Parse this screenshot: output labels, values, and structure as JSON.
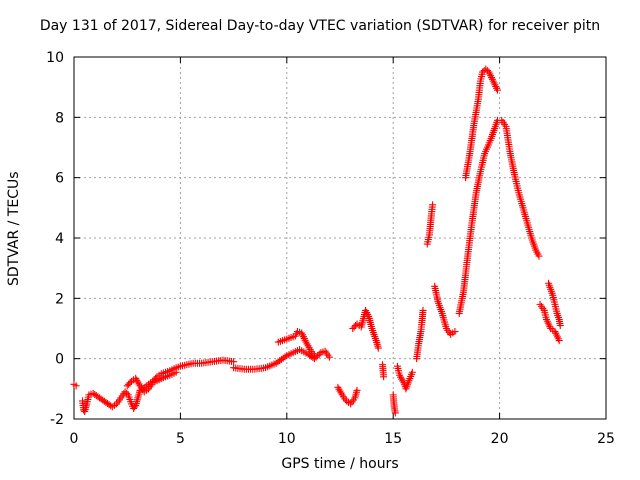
{
  "chart_data": {
    "type": "scatter",
    "title": "Day 131 of 2017, Sidereal Day-to-day VTEC variation (SDTVAR) for receiver pitn",
    "xlabel": "GPS time / hours",
    "ylabel": "SDTVAR / TECUs",
    "xlim": [
      0,
      25
    ],
    "ylim": [
      -2,
      10
    ],
    "xticks": [
      "0",
      "5",
      "10",
      "15",
      "20",
      "25"
    ],
    "yticks": [
      "-2",
      "0",
      "2",
      "4",
      "6",
      "8",
      "10"
    ],
    "grid": true,
    "marker": "+",
    "color": "#ff0000",
    "series": [
      {
        "segments": [
          [
            [
              0.0,
              -0.85
            ],
            [
              0.1,
              -0.9
            ]
          ],
          [
            [
              0.4,
              -1.4
            ],
            [
              0.45,
              -1.7
            ],
            [
              0.5,
              -1.75
            ],
            [
              0.6,
              -1.5
            ],
            [
              0.7,
              -1.2
            ],
            [
              0.9,
              -1.15
            ],
            [
              1.2,
              -1.3
            ],
            [
              1.5,
              -1.45
            ],
            [
              1.8,
              -1.6
            ],
            [
              2.0,
              -1.5
            ],
            [
              2.2,
              -1.3
            ],
            [
              2.4,
              -1.1
            ],
            [
              2.55,
              -1.2
            ],
            [
              2.7,
              -1.5
            ],
            [
              2.8,
              -1.65
            ],
            [
              2.9,
              -1.55
            ],
            [
              3.0,
              -1.3
            ],
            [
              3.1,
              -1.05
            ],
            [
              3.3,
              -0.95
            ],
            [
              3.5,
              -0.85
            ],
            [
              3.7,
              -0.75
            ],
            [
              3.9,
              -0.6
            ],
            [
              4.1,
              -0.5
            ],
            [
              4.3,
              -0.45
            ],
            [
              4.5,
              -0.4
            ],
            [
              4.8,
              -0.3
            ],
            [
              5.0,
              -0.25
            ],
            [
              5.3,
              -0.2
            ],
            [
              5.6,
              -0.15
            ],
            [
              6.0,
              -0.15
            ],
            [
              6.5,
              -0.1
            ],
            [
              7.0,
              -0.05
            ],
            [
              7.5,
              -0.1
            ]
          ],
          [
            [
              2.5,
              -0.9
            ],
            [
              2.7,
              -0.75
            ],
            [
              2.9,
              -0.65
            ],
            [
              3.1,
              -0.9
            ],
            [
              3.3,
              -1.1
            ],
            [
              3.5,
              -1.0
            ],
            [
              3.7,
              -0.8
            ],
            [
              4.0,
              -0.7
            ],
            [
              4.3,
              -0.6
            ],
            [
              4.5,
              -0.55
            ],
            [
              4.8,
              -0.45
            ]
          ],
          [
            [
              7.5,
              -0.3
            ],
            [
              8.0,
              -0.35
            ],
            [
              8.5,
              -0.35
            ],
            [
              9.0,
              -0.3
            ],
            [
              9.5,
              -0.15
            ],
            [
              10.0,
              0.1
            ],
            [
              10.3,
              0.2
            ],
            [
              10.6,
              0.3
            ],
            [
              11.0,
              0.15
            ],
            [
              11.3,
              0.0
            ],
            [
              11.6,
              0.2
            ],
            [
              11.8,
              0.25
            ],
            [
              12.0,
              0.05
            ]
          ],
          [
            [
              9.6,
              0.55
            ],
            [
              10.0,
              0.65
            ],
            [
              10.4,
              0.75
            ],
            [
              10.5,
              0.9
            ],
            [
              10.7,
              0.85
            ],
            [
              10.9,
              0.55
            ],
            [
              11.1,
              0.3
            ],
            [
              11.3,
              0.1
            ]
          ],
          [
            [
              12.4,
              -0.95
            ],
            [
              12.6,
              -1.2
            ],
            [
              12.8,
              -1.4
            ],
            [
              13.0,
              -1.5
            ],
            [
              13.2,
              -1.3
            ],
            [
              13.3,
              -1.05
            ]
          ],
          [
            [
              13.1,
              1.0
            ],
            [
              13.3,
              1.15
            ],
            [
              13.5,
              1.05
            ],
            [
              13.7,
              1.6
            ],
            [
              13.85,
              1.4
            ],
            [
              14.0,
              1.0
            ],
            [
              14.2,
              0.6
            ],
            [
              14.3,
              0.35
            ]
          ],
          [
            [
              14.5,
              -0.2
            ],
            [
              14.55,
              -0.6
            ]
          ],
          [
            [
              15.0,
              -1.2
            ],
            [
              15.05,
              -1.6
            ],
            [
              15.1,
              -1.8
            ]
          ],
          [
            [
              15.2,
              -0.25
            ],
            [
              15.3,
              -0.55
            ],
            [
              15.5,
              -0.8
            ],
            [
              15.6,
              -1.0
            ],
            [
              15.7,
              -0.8
            ],
            [
              15.9,
              -0.45
            ]
          ],
          [
            [
              16.1,
              0.0
            ],
            [
              16.2,
              0.5
            ],
            [
              16.3,
              0.9
            ],
            [
              16.35,
              1.2
            ],
            [
              16.4,
              1.6
            ]
          ],
          [
            [
              16.6,
              3.8
            ],
            [
              16.7,
              4.1
            ],
            [
              16.8,
              4.8
            ],
            [
              16.85,
              5.1
            ]
          ],
          [
            [
              16.95,
              2.4
            ],
            [
              17.1,
              1.9
            ],
            [
              17.3,
              1.5
            ],
            [
              17.5,
              1.0
            ],
            [
              17.7,
              0.8
            ],
            [
              17.9,
              0.9
            ]
          ],
          [
            [
              18.1,
              1.5
            ],
            [
              18.3,
              2.2
            ],
            [
              18.5,
              3.4
            ],
            [
              18.7,
              4.5
            ],
            [
              18.9,
              5.5
            ],
            [
              19.1,
              6.2
            ],
            [
              19.3,
              6.8
            ],
            [
              19.6,
              7.3
            ],
            [
              19.8,
              7.7
            ],
            [
              19.9,
              7.9
            ]
          ],
          [
            [
              18.4,
              6.0
            ],
            [
              18.6,
              6.8
            ],
            [
              18.8,
              7.8
            ],
            [
              19.0,
              8.6
            ],
            [
              19.1,
              9.2
            ],
            [
              19.2,
              9.5
            ],
            [
              19.35,
              9.6
            ],
            [
              19.5,
              9.5
            ],
            [
              19.7,
              9.2
            ],
            [
              19.9,
              8.9
            ]
          ],
          [
            [
              20.1,
              7.9
            ],
            [
              20.3,
              7.7
            ],
            [
              20.5,
              6.8
            ],
            [
              20.7,
              6.1
            ],
            [
              20.9,
              5.5
            ],
            [
              21.1,
              5.0
            ],
            [
              21.3,
              4.5
            ],
            [
              21.5,
              4.0
            ],
            [
              21.7,
              3.6
            ],
            [
              21.85,
              3.4
            ]
          ],
          [
            [
              21.9,
              1.8
            ],
            [
              22.1,
              1.6
            ],
            [
              22.2,
              1.3
            ],
            [
              22.4,
              1.0
            ],
            [
              22.6,
              0.9
            ],
            [
              22.8,
              0.6
            ]
          ],
          [
            [
              22.3,
              2.5
            ],
            [
              22.5,
              2.1
            ],
            [
              22.6,
              1.8
            ],
            [
              22.7,
              1.5
            ],
            [
              22.8,
              1.3
            ],
            [
              22.85,
              1.1
            ]
          ]
        ]
      }
    ]
  }
}
